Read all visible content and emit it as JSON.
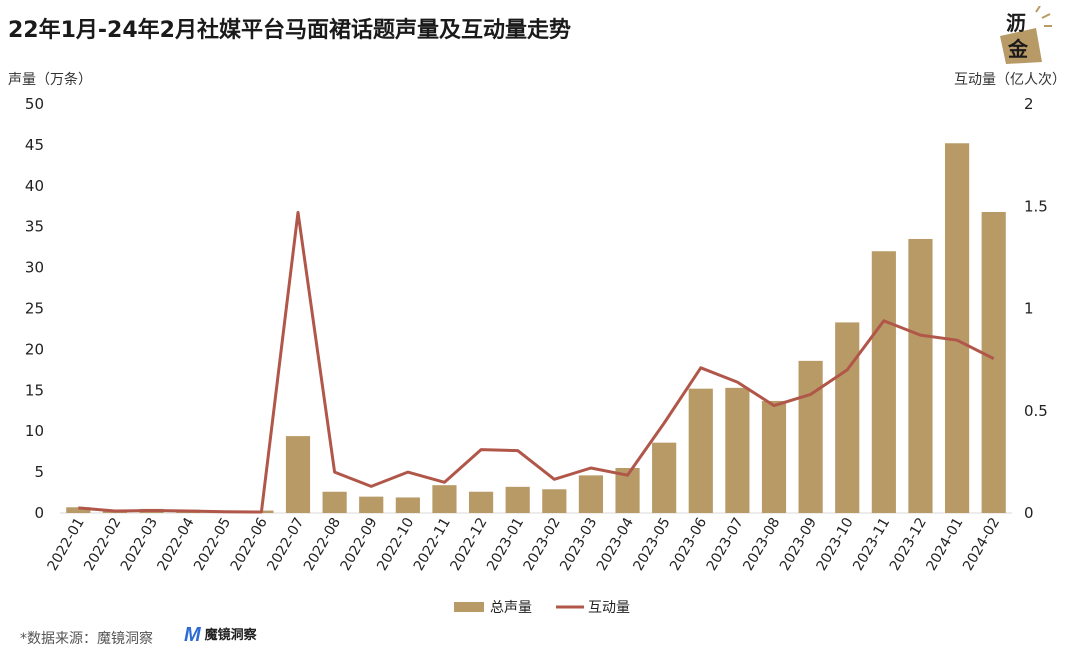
{
  "title": "22年1月-24年2月社媒平台马面裙话题声量及互动量走势",
  "logo": {
    "line1": "沥",
    "line2": "金",
    "icon": "lijin-logo-icon"
  },
  "source": "*数据来源：魔镜洞察",
  "brand": {
    "name": "魔镜洞察",
    "icon": "mojing-logo-icon"
  },
  "colors": {
    "bar": "#b89a66",
    "line": "#b0574a"
  },
  "chart_data": {
    "type": "bar",
    "categories": [
      "2022-01",
      "2022-02",
      "2022-03",
      "2022-04",
      "2022-05",
      "2022-06",
      "2022-07",
      "2022-08",
      "2022-09",
      "2022-10",
      "2022-11",
      "2022-12",
      "2023-01",
      "2023-02",
      "2023-03",
      "2023-04",
      "2023-05",
      "2023-06",
      "2023-07",
      "2023-08",
      "2023-09",
      "2023-10",
      "2023-11",
      "2023-12",
      "2024-01",
      "2024-02"
    ],
    "ylabel_left": "声量（万条）",
    "ylabel_right": "互动量（亿人次）",
    "ylim_left": [
      0,
      50
    ],
    "yticks_left": [
      "0",
      "5",
      "10",
      "15",
      "20",
      "25",
      "30",
      "35",
      "40",
      "45",
      "50"
    ],
    "ylim_right": [
      0,
      2
    ],
    "yticks_right": [
      "0",
      "0.5",
      "1",
      "1.5",
      "2"
    ],
    "series": [
      {
        "name": "总声量",
        "type": "bar",
        "axis": "left",
        "values": [
          0.7,
          0.4,
          0.5,
          0.4,
          0.3,
          0.3,
          9.4,
          2.6,
          2.0,
          1.9,
          3.4,
          2.6,
          3.2,
          2.9,
          4.6,
          5.5,
          8.6,
          15.2,
          15.3,
          13.7,
          18.6,
          23.3,
          32.0,
          33.5,
          45.2,
          36.8
        ]
      },
      {
        "name": "互动量",
        "type": "line",
        "axis": "right",
        "values": [
          0.025,
          0.01,
          0.012,
          0.01,
          0.006,
          0.005,
          1.47,
          0.2,
          0.13,
          0.2,
          0.15,
          0.31,
          0.305,
          0.165,
          0.22,
          0.185,
          0.44,
          0.71,
          0.64,
          0.525,
          0.58,
          0.7,
          0.94,
          0.87,
          0.845,
          0.755
        ]
      }
    ],
    "legend": "bottom"
  }
}
